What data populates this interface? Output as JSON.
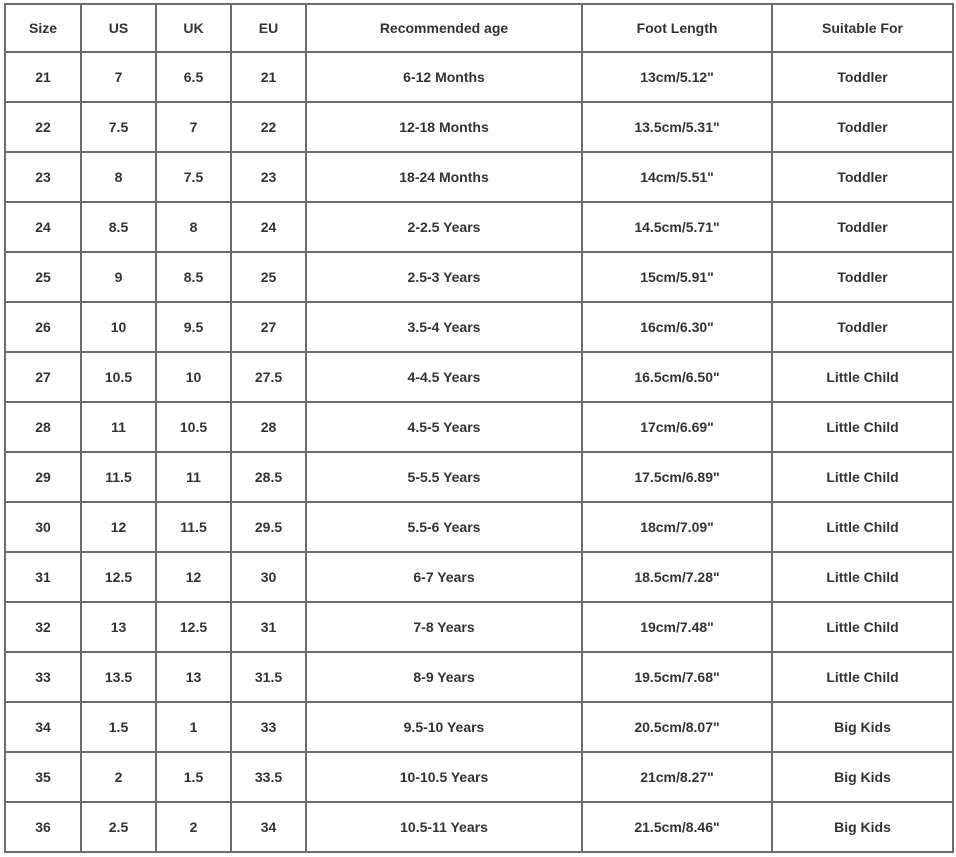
{
  "table": {
    "header": [
      "Size",
      "US",
      "UK",
      "EU",
      "Recommended age",
      "Foot Length",
      "Suitable For"
    ],
    "rows": [
      [
        "21",
        "7",
        "6.5",
        "21",
        "6-12 Months",
        "13cm/5.12\"",
        "Toddler"
      ],
      [
        "22",
        "7.5",
        "7",
        "22",
        "12-18 Months",
        "13.5cm/5.31\"",
        "Toddler"
      ],
      [
        "23",
        "8",
        "7.5",
        "23",
        "18-24 Months",
        "14cm/5.51\"",
        "Toddler"
      ],
      [
        "24",
        "8.5",
        "8",
        "24",
        "2-2.5 Years",
        "14.5cm/5.71\"",
        "Toddler"
      ],
      [
        "25",
        "9",
        "8.5",
        "25",
        "2.5-3 Years",
        "15cm/5.91\"",
        "Toddler"
      ],
      [
        "26",
        "10",
        "9.5",
        "27",
        "3.5-4 Years",
        "16cm/6.30\"",
        "Toddler"
      ],
      [
        "27",
        "10.5",
        "10",
        "27.5",
        "4-4.5 Years",
        "16.5cm/6.50\"",
        "Little Child"
      ],
      [
        "28",
        "11",
        "10.5",
        "28",
        "4.5-5 Years",
        "17cm/6.69\"",
        "Little Child"
      ],
      [
        "29",
        "11.5",
        "11",
        "28.5",
        "5-5.5 Years",
        "17.5cm/6.89\"",
        "Little Child"
      ],
      [
        "30",
        "12",
        "11.5",
        "29.5",
        "5.5-6 Years",
        "18cm/7.09\"",
        "Little Child"
      ],
      [
        "31",
        "12.5",
        "12",
        "30",
        "6-7 Years",
        "18.5cm/7.28\"",
        "Little Child"
      ],
      [
        "32",
        "13",
        "12.5",
        "31",
        "7-8 Years",
        "19cm/7.48\"",
        "Little Child"
      ],
      [
        "33",
        "13.5",
        "13",
        "31.5",
        "8-9 Years",
        "19.5cm/7.68\"",
        "Little Child"
      ],
      [
        "34",
        "1.5",
        "1",
        "33",
        "9.5-10 Years",
        "20.5cm/8.07\"",
        "Big Kids"
      ],
      [
        "35",
        "2",
        "1.5",
        "33.5",
        "10-10.5 Years",
        "21cm/8.27\"",
        "Big Kids"
      ],
      [
        "36",
        "2.5",
        "2",
        "34",
        "10.5-11 Years",
        "21.5cm/8.46\"",
        "Big Kids"
      ]
    ]
  }
}
